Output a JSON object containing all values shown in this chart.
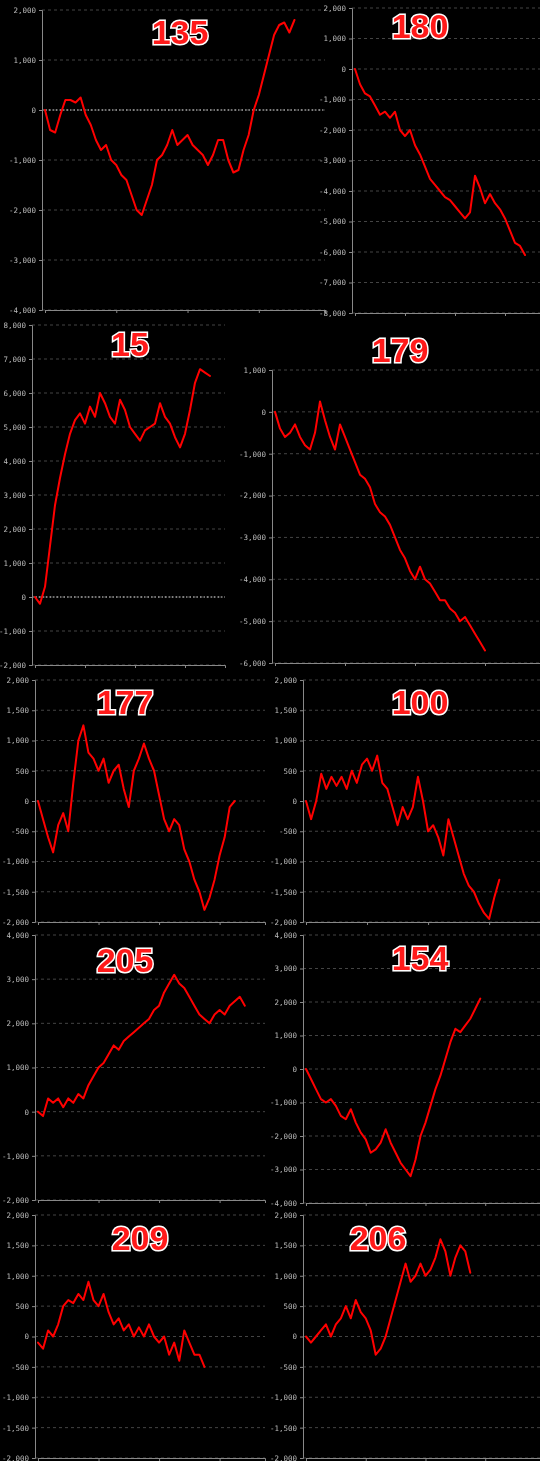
{
  "chart_data": [
    {
      "type": "line",
      "title": "135",
      "color": "#ff0000",
      "ref_lines": [
        {
          "axis": "y",
          "value": 0,
          "color": "#dddddd",
          "line_style": "dotted"
        }
      ],
      "grid": "y",
      "tick_labels": "y",
      "ylim": [
        -4000,
        2000
      ],
      "yticks": [
        {
          "value": -4000,
          "label": "-4,000"
        },
        {
          "value": -3000,
          "label": "-3,000"
        },
        {
          "value": -2000,
          "label": "-2,000"
        },
        {
          "value": -1000,
          "label": "-1,000"
        },
        0,
        {
          "value": 1000,
          "label": "1,000"
        },
        {
          "value": 2000,
          "label": "2,000"
        }
      ],
      "categories": [
        null,
        null,
        null,
        null,
        null,
        null,
        null,
        null,
        null,
        null,
        null,
        null,
        null,
        null,
        null,
        null,
        null,
        null,
        null,
        null,
        null,
        null,
        null,
        null,
        null,
        null,
        null,
        null,
        null,
        null,
        null,
        null,
        null,
        null,
        null,
        null,
        null,
        null,
        null,
        null,
        null,
        null,
        null,
        null,
        null,
        null,
        null,
        null,
        null,
        null,
        null,
        null,
        null,
        null,
        null,
        null
      ],
      "values": [
        0,
        -400,
        -450,
        -100,
        200,
        200,
        150,
        250,
        -100,
        -300,
        -600,
        -800,
        -700,
        -1000,
        -1100,
        -1300,
        -1400,
        -1700,
        -2000,
        -2100,
        -1800,
        -1500,
        -1000,
        -900,
        -700,
        -400,
        -700,
        -600,
        -500,
        -700,
        -800,
        -900,
        -1100,
        -900,
        -600,
        -600,
        -1000,
        -1250,
        -1200,
        -800,
        -500,
        0,
        300,
        700,
        1100,
        1500,
        1700,
        1750,
        1550,
        1800,
        null,
        null,
        null,
        null,
        null,
        null
      ]
    },
    {
      "type": "line",
      "title": "180",
      "color": "#ff0000",
      "grid": "y",
      "tick_labels": "y",
      "ylim": [
        -8000,
        2000
      ],
      "yticks": [
        {
          "value": -8000,
          "label": "-8,000"
        },
        {
          "value": -7000,
          "label": "-7,000"
        },
        {
          "value": -6000,
          "label": "-6,000"
        },
        {
          "value": -5000,
          "label": "-5,000"
        },
        {
          "value": -4000,
          "label": "-4,000"
        },
        {
          "value": -3000,
          "label": "-3,000"
        },
        {
          "value": -2000,
          "label": "-2,000"
        },
        {
          "value": -1000,
          "label": "-1,000"
        },
        0,
        {
          "value": 1000,
          "label": "1,000"
        },
        {
          "value": 2000,
          "label": "2,000"
        }
      ],
      "categories": [
        null,
        null,
        null,
        null,
        null,
        null,
        null,
        null,
        null,
        null,
        null,
        null,
        null,
        null,
        null,
        null,
        null,
        null,
        null,
        null,
        null,
        null,
        null,
        null,
        null,
        null,
        null,
        null,
        null,
        null,
        null,
        null,
        null,
        null,
        null,
        null,
        null,
        null
      ],
      "values": [
        0,
        -500,
        -800,
        -900,
        -1200,
        -1500,
        -1400,
        -1600,
        -1400,
        -2000,
        -2200,
        -2000,
        -2500,
        -2800,
        -3200,
        -3600,
        -3800,
        -4000,
        -4200,
        -4300,
        -4500,
        -4700,
        -4900,
        -4700,
        -3500,
        -3900,
        -4400,
        -4100,
        -4400,
        -4600,
        -4900,
        -5300,
        -5700,
        -5800,
        -6100,
        null,
        null,
        null
      ]
    },
    {
      "type": "line",
      "title": "15",
      "color": "#ff0000",
      "ref_lines": [
        {
          "axis": "y",
          "value": 0,
          "color": "#dddddd",
          "line_style": "dotted"
        }
      ],
      "grid": "y",
      "tick_labels": "y",
      "ylim": [
        -2000,
        8000
      ],
      "yticks": [
        {
          "value": -2000,
          "label": "-2,000"
        },
        {
          "value": -1000,
          "label": "-1,000"
        },
        0,
        {
          "value": 1000,
          "label": "1,000"
        },
        {
          "value": 2000,
          "label": "2,000"
        },
        {
          "value": 3000,
          "label": "3,000"
        },
        {
          "value": 4000,
          "label": "4,000"
        },
        {
          "value": 5000,
          "label": "5,000"
        },
        {
          "value": 6000,
          "label": "6,000"
        },
        {
          "value": 7000,
          "label": "7,000"
        },
        {
          "value": 8000,
          "label": "8,000"
        }
      ],
      "categories": [
        null,
        null,
        null,
        null,
        null,
        null,
        null,
        null,
        null,
        null,
        null,
        null,
        null,
        null,
        null,
        null,
        null,
        null,
        null,
        null,
        null,
        null,
        null,
        null,
        null,
        null,
        null,
        null,
        null,
        null,
        null,
        null,
        null,
        null,
        null,
        null,
        null,
        null,
        null
      ],
      "values": [
        0,
        -200,
        300,
        1500,
        2700,
        3500,
        4200,
        4800,
        5200,
        5400,
        5100,
        5600,
        5300,
        6000,
        5700,
        5300,
        5100,
        5800,
        5500,
        5000,
        4800,
        4600,
        4900,
        5000,
        5100,
        5700,
        5300,
        5100,
        4700,
        4400,
        4800,
        5500,
        6300,
        6700,
        6600,
        6500,
        null,
        null,
        null
      ]
    },
    {
      "type": "line",
      "title": "179",
      "color": "#ff0000",
      "grid": "y",
      "tick_labels": "y",
      "ylim": [
        -6000,
        1000
      ],
      "yticks": [
        {
          "value": -6000,
          "label": "-6,000"
        },
        {
          "value": -5000,
          "label": "-5,000"
        },
        {
          "value": -4000,
          "label": "-4,000"
        },
        {
          "value": -3000,
          "label": "-3,000"
        },
        {
          "value": -2000,
          "label": "-2,000"
        },
        {
          "value": -1000,
          "label": "-1,000"
        },
        0,
        {
          "value": 1000,
          "label": "1,000"
        }
      ],
      "categories": [
        null,
        null,
        null,
        null,
        null,
        null,
        null,
        null,
        null,
        null,
        null,
        null,
        null,
        null,
        null,
        null,
        null,
        null,
        null,
        null,
        null,
        null,
        null,
        null,
        null,
        null,
        null,
        null,
        null,
        null,
        null,
        null,
        null,
        null,
        null,
        null,
        null,
        null,
        null,
        null,
        null,
        null,
        null,
        null,
        null,
        null,
        null,
        null,
        null,
        null,
        null,
        null,
        null,
        null
      ],
      "values": [
        0,
        -400,
        -600,
        -500,
        -300,
        -600,
        -800,
        -900,
        -500,
        250,
        -200,
        -600,
        -900,
        -300,
        -600,
        -900,
        -1200,
        -1500,
        -1600,
        -1800,
        -2200,
        -2400,
        -2500,
        -2700,
        -3000,
        -3300,
        -3500,
        -3800,
        -4000,
        -3700,
        -4000,
        -4100,
        -4300,
        -4500,
        -4500,
        -4700,
        -4800,
        -5000,
        -4900,
        -5100,
        -5300,
        -5500,
        -5700,
        null,
        null,
        null,
        null,
        null,
        null,
        null,
        null,
        null,
        null,
        null
      ]
    },
    {
      "type": "line",
      "title": "177",
      "color": "#ff0000",
      "grid": "y",
      "tick_labels": "y",
      "ylim": [
        -2000,
        2000
      ],
      "yticks": [
        {
          "value": -2000,
          "label": "-2,000"
        },
        {
          "value": -1500,
          "label": "-1,500"
        },
        {
          "value": -1000,
          "label": "-1,000"
        },
        -500,
        0,
        500,
        {
          "value": 1000,
          "label": "1,000"
        },
        {
          "value": 1500,
          "label": "1,500"
        },
        {
          "value": 2000,
          "label": "2,000"
        }
      ],
      "categories": [
        null,
        null,
        null,
        null,
        null,
        null,
        null,
        null,
        null,
        null,
        null,
        null,
        null,
        null,
        null,
        null,
        null,
        null,
        null,
        null,
        null,
        null,
        null,
        null,
        null,
        null,
        null,
        null,
        null,
        null,
        null,
        null,
        null,
        null,
        null,
        null,
        null,
        null,
        null,
        null,
        null,
        null,
        null,
        null,
        null,
        null
      ],
      "values": [
        0,
        -300,
        -600,
        -850,
        -400,
        -200,
        -500,
        300,
        1000,
        1250,
        800,
        700,
        500,
        700,
        300,
        500,
        600,
        200,
        -100,
        500,
        700,
        950,
        700,
        500,
        100,
        -300,
        -500,
        -300,
        -400,
        -800,
        -1000,
        -1300,
        -1500,
        -1800,
        -1600,
        -1300,
        -900,
        -600,
        -100,
        0,
        null,
        null,
        null,
        null,
        null,
        null
      ]
    },
    {
      "type": "line",
      "title": "100",
      "color": "#ff0000",
      "grid": "y",
      "tick_labels": "y",
      "ylim": [
        -2000,
        2000
      ],
      "yticks": [
        {
          "value": -2000,
          "label": "-2,000"
        },
        {
          "value": -1500,
          "label": "-1,500"
        },
        {
          "value": -1000,
          "label": "-1,000"
        },
        -500,
        0,
        500,
        {
          "value": 1000,
          "label": "1,000"
        },
        {
          "value": 1500,
          "label": "1,500"
        },
        {
          "value": 2000,
          "label": "2,000"
        }
      ],
      "categories": [
        null,
        null,
        null,
        null,
        null,
        null,
        null,
        null,
        null,
        null,
        null,
        null,
        null,
        null,
        null,
        null,
        null,
        null,
        null,
        null,
        null,
        null,
        null,
        null,
        null,
        null,
        null,
        null,
        null,
        null,
        null,
        null,
        null,
        null,
        null,
        null,
        null,
        null,
        null,
        null,
        null,
        null,
        null,
        null,
        null,
        null,
        null
      ],
      "values": [
        0,
        -300,
        0,
        450,
        200,
        400,
        250,
        400,
        200,
        500,
        300,
        600,
        700,
        500,
        750,
        300,
        200,
        -100,
        -400,
        -100,
        -300,
        -100,
        400,
        0,
        -500,
        -400,
        -600,
        -900,
        -300,
        -600,
        -900,
        -1200,
        -1400,
        -1500,
        -1700,
        -1850,
        -1950,
        -1600,
        -1300,
        null,
        null,
        null,
        null,
        null,
        null,
        null,
        null
      ]
    },
    {
      "type": "line",
      "title": "205",
      "color": "#ff0000",
      "grid": "y",
      "tick_labels": "y",
      "ylim": [
        -2000,
        4000
      ],
      "yticks": [
        {
          "value": -2000,
          "label": "-2,000"
        },
        {
          "value": -1000,
          "label": "-1,000"
        },
        0,
        {
          "value": 1000,
          "label": "1,000"
        },
        {
          "value": 2000,
          "label": "2,000"
        },
        {
          "value": 3000,
          "label": "3,000"
        },
        {
          "value": 4000,
          "label": "4,000"
        }
      ],
      "categories": [
        null,
        null,
        null,
        null,
        null,
        null,
        null,
        null,
        null,
        null,
        null,
        null,
        null,
        null,
        null,
        null,
        null,
        null,
        null,
        null,
        null,
        null,
        null,
        null,
        null,
        null,
        null,
        null,
        null,
        null,
        null,
        null,
        null,
        null,
        null,
        null,
        null,
        null,
        null,
        null,
        null,
        null,
        null,
        null,
        null,
        null
      ],
      "values": [
        0,
        -100,
        300,
        200,
        300,
        100,
        300,
        200,
        400,
        300,
        600,
        800,
        1000,
        1100,
        1300,
        1500,
        1400,
        1600,
        1700,
        1800,
        1900,
        2000,
        2100,
        2300,
        2400,
        2700,
        2900,
        3100,
        2900,
        2800,
        2600,
        2400,
        2200,
        2100,
        2000,
        2200,
        2300,
        2200,
        2400,
        2500,
        2600,
        2400,
        null,
        null,
        null,
        null
      ]
    },
    {
      "type": "line",
      "title": "154",
      "color": "#ff0000",
      "grid": "y",
      "tick_labels": "y",
      "ylim": [
        -4000,
        4000
      ],
      "yticks": [
        {
          "value": -4000,
          "label": "-4,000"
        },
        {
          "value": -3000,
          "label": "-3,000"
        },
        {
          "value": -2000,
          "label": "-2,000"
        },
        {
          "value": -1000,
          "label": "-1,000"
        },
        0,
        {
          "value": 1000,
          "label": "1,000"
        },
        {
          "value": 2000,
          "label": "2,000"
        },
        {
          "value": 3000,
          "label": "3,000"
        },
        {
          "value": 4000,
          "label": "4,000"
        }
      ],
      "categories": [
        null,
        null,
        null,
        null,
        null,
        null,
        null,
        null,
        null,
        null,
        null,
        null,
        null,
        null,
        null,
        null,
        null,
        null,
        null,
        null,
        null,
        null,
        null,
        null,
        null,
        null,
        null,
        null,
        null,
        null,
        null,
        null,
        null,
        null,
        null,
        null,
        null,
        null,
        null,
        null,
        null,
        null,
        null,
        null,
        null,
        null,
        null,
        null
      ],
      "values": [
        0,
        -300,
        -600,
        -900,
        -1000,
        -900,
        -1100,
        -1400,
        -1500,
        -1200,
        -1600,
        -1900,
        -2100,
        -2500,
        -2400,
        -2200,
        -1800,
        -2200,
        -2500,
        -2800,
        -3000,
        -3200,
        -2700,
        -2000,
        -1600,
        -1100,
        -600,
        -200,
        300,
        800,
        1200,
        1100,
        1300,
        1500,
        1800,
        2100,
        null,
        null,
        null,
        null,
        null,
        null,
        null,
        null,
        null,
        null,
        null,
        null
      ]
    },
    {
      "type": "line",
      "title": "209",
      "color": "#ff0000",
      "grid": "y",
      "tick_labels": "y",
      "ylim": [
        -2000,
        2000
      ],
      "yticks": [
        {
          "value": -2000,
          "label": "-2,000"
        },
        {
          "value": -1500,
          "label": "-1,500"
        },
        {
          "value": -1000,
          "label": "-1,000"
        },
        -500,
        0,
        500,
        {
          "value": 1000,
          "label": "1,000"
        },
        {
          "value": 1500,
          "label": "1,500"
        },
        {
          "value": 2000,
          "label": "2,000"
        }
      ],
      "categories": [
        null,
        null,
        null,
        null,
        null,
        null,
        null,
        null,
        null,
        null,
        null,
        null,
        null,
        null,
        null,
        null,
        null,
        null,
        null,
        null,
        null,
        null,
        null,
        null,
        null,
        null,
        null,
        null,
        null,
        null,
        null,
        null,
        null,
        null,
        null,
        null,
        null,
        null,
        null,
        null,
        null,
        null,
        null,
        null,
        null,
        null
      ],
      "values": [
        -100,
        -200,
        100,
        0,
        200,
        500,
        600,
        550,
        700,
        600,
        900,
        600,
        500,
        700,
        400,
        200,
        300,
        100,
        200,
        0,
        150,
        0,
        200,
        0,
        -100,
        0,
        -300,
        -100,
        -400,
        100,
        -100,
        -300,
        -300,
        -500,
        null,
        null,
        null,
        null,
        null,
        null,
        null,
        null,
        null,
        null,
        null,
        null
      ]
    },
    {
      "type": "line",
      "title": "206",
      "color": "#ff0000",
      "grid": "y",
      "tick_labels": "y",
      "ylim": [
        -2000,
        2000
      ],
      "yticks": [
        {
          "value": -2000,
          "label": "-2,000"
        },
        {
          "value": -1500,
          "label": "-1,500"
        },
        {
          "value": -1000,
          "label": "-1,000"
        },
        -500,
        0,
        500,
        {
          "value": 1000,
          "label": "1,000"
        },
        {
          "value": 1500,
          "label": "1,500"
        },
        {
          "value": 2000,
          "label": "2,000"
        }
      ],
      "categories": [
        null,
        null,
        null,
        null,
        null,
        null,
        null,
        null,
        null,
        null,
        null,
        null,
        null,
        null,
        null,
        null,
        null,
        null,
        null,
        null,
        null,
        null,
        null,
        null,
        null,
        null,
        null,
        null,
        null,
        null,
        null,
        null,
        null,
        null,
        null,
        null,
        null,
        null,
        null,
        null,
        null,
        null,
        null,
        null,
        null,
        null,
        null,
        null
      ],
      "values": [
        0,
        -100,
        0,
        100,
        200,
        0,
        200,
        300,
        500,
        300,
        600,
        400,
        300,
        100,
        -300,
        -200,
        0,
        300,
        600,
        900,
        1200,
        900,
        1000,
        1200,
        1000,
        1100,
        1300,
        1600,
        1400,
        1000,
        1300,
        1500,
        1400,
        1050,
        null,
        null,
        null,
        null,
        null,
        null,
        null,
        null,
        null,
        null,
        null,
        null,
        null,
        null
      ]
    }
  ]
}
